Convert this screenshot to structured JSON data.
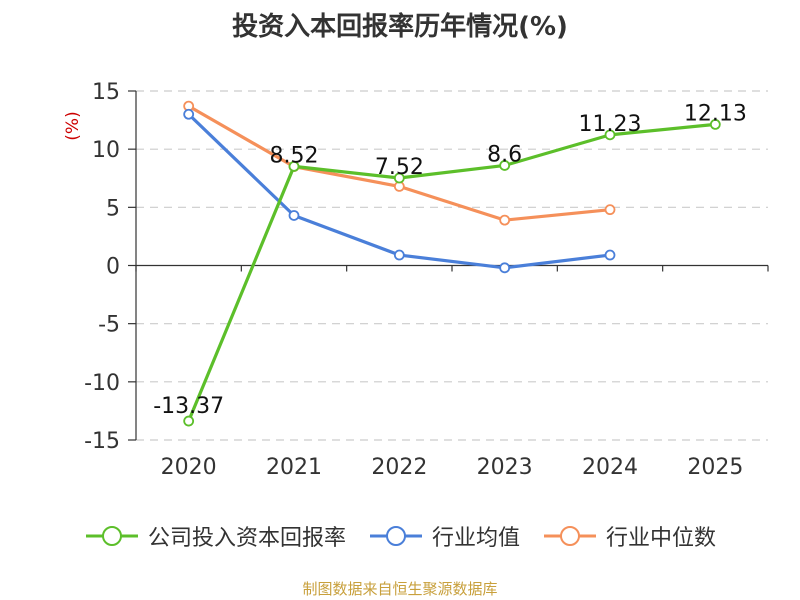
{
  "chart_data": {
    "type": "line",
    "title": "投资入本回报率历年情况(%)",
    "ylabel": "(%)",
    "xlabel": "",
    "categories": [
      "2020",
      "2021",
      "2022",
      "2023",
      "2024",
      "2025"
    ],
    "ylim": [
      -15,
      15
    ],
    "yticks": [
      15,
      10,
      5,
      0,
      -5,
      -10,
      -15
    ],
    "ytick_labels": [
      "15",
      "10",
      "5",
      "0",
      "-5",
      "-10",
      "-15"
    ],
    "grid": true,
    "legend_position": "bottom",
    "series": [
      {
        "name": "公司投入资本回报率",
        "color": "#5cbf2a",
        "values": [
          -13.37,
          8.52,
          7.52,
          8.6,
          11.23,
          12.13
        ],
        "labels": [
          "-13.37",
          "8.52",
          "7.52",
          "8.6",
          "11.23",
          "12.13"
        ]
      },
      {
        "name": "行业均值",
        "color": "#4a7fd9",
        "values": [
          13.0,
          4.3,
          0.9,
          -0.2,
          0.9,
          null
        ]
      },
      {
        "name": "行业中位数",
        "color": "#f5905a",
        "values": [
          13.7,
          8.5,
          6.8,
          3.9,
          4.8,
          null
        ]
      }
    ]
  },
  "footer": "制图数据来自恒生聚源数据库"
}
